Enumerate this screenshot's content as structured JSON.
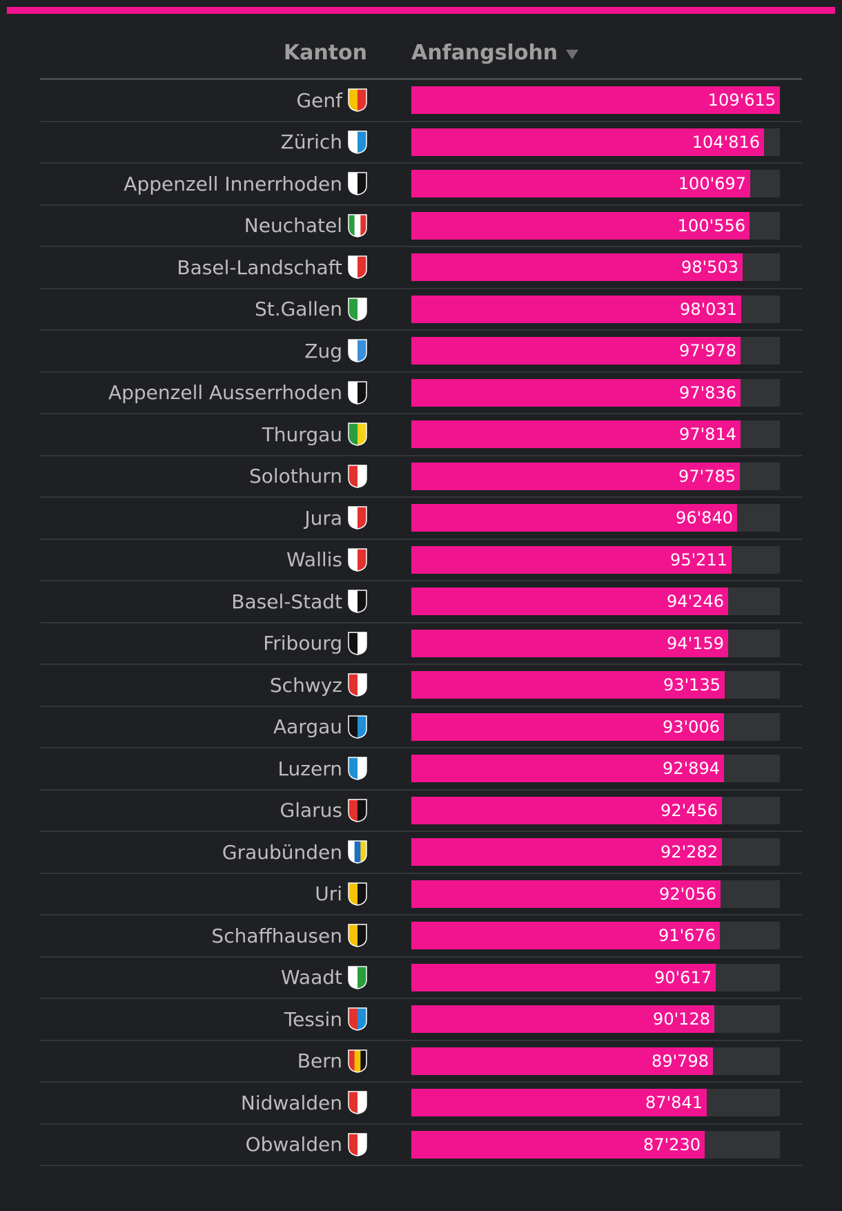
{
  "header": {
    "kanton_label": "Kanton",
    "lohn_label": "Anfangslohn"
  },
  "colors": {
    "accent": "#f2148f",
    "background": "#1f2023",
    "bar_track": "#333437"
  },
  "chart_data": {
    "type": "bar",
    "orientation": "horizontal",
    "xlim": [
      0,
      109615
    ],
    "categories": [
      "Genf",
      "Zürich",
      "Appenzell Innerrhoden",
      "Neuchatel",
      "Basel-Landschaft",
      "St.Gallen",
      "Zug",
      "Appenzell Ausserrhoden",
      "Thurgau",
      "Solothurn",
      "Jura",
      "Wallis",
      "Basel-Stadt",
      "Fribourg",
      "Schwyz",
      "Aargau",
      "Luzern",
      "Glarus",
      "Graubünden",
      "Uri",
      "Schaffhausen",
      "Waadt",
      "Tessin",
      "Bern",
      "Nidwalden",
      "Obwalden"
    ],
    "values": [
      109615,
      104816,
      100697,
      100556,
      98503,
      98031,
      97978,
      97836,
      97814,
      97785,
      96840,
      95211,
      94246,
      94159,
      93135,
      93006,
      92894,
      92456,
      92282,
      92056,
      91676,
      90617,
      90128,
      89798,
      87841,
      87230
    ],
    "labels": [
      "109'615",
      "104'816",
      "100'697",
      "100'556",
      "98'503",
      "98'031",
      "97'978",
      "97'836",
      "97'814",
      "97'785",
      "96'840",
      "95'211",
      "94'246",
      "94'159",
      "93'135",
      "93'006",
      "92'894",
      "92'456",
      "92'282",
      "92'056",
      "91'676",
      "90'617",
      "90'128",
      "89'798",
      "87'841",
      "87'230"
    ],
    "crests": [
      {
        "icon": "geneva-crest-icon",
        "colors": [
          "#f7c200",
          "#e3312d"
        ]
      },
      {
        "icon": "zurich-crest-icon",
        "colors": [
          "#ffffff",
          "#1f8fd6"
        ]
      },
      {
        "icon": "appenzell-innerrhoden-crest-icon",
        "colors": [
          "#ffffff",
          "#111111"
        ]
      },
      {
        "icon": "neuchatel-crest-icon",
        "colors": [
          "#2a9d3c",
          "#ffffff",
          "#e3312d"
        ]
      },
      {
        "icon": "basel-landschaft-crest-icon",
        "colors": [
          "#ffffff",
          "#e3312d"
        ]
      },
      {
        "icon": "st-gallen-crest-icon",
        "colors": [
          "#2a9d3c",
          "#ffffff"
        ]
      },
      {
        "icon": "zug-crest-icon",
        "colors": [
          "#ffffff",
          "#3a8fd9"
        ]
      },
      {
        "icon": "appenzell-ausserrhoden-crest-icon",
        "colors": [
          "#ffffff",
          "#111111"
        ]
      },
      {
        "icon": "thurgau-crest-icon",
        "colors": [
          "#2a9d3c",
          "#f7d21b"
        ]
      },
      {
        "icon": "solothurn-crest-icon",
        "colors": [
          "#e3312d",
          "#ffffff"
        ]
      },
      {
        "icon": "jura-crest-icon",
        "colors": [
          "#ffffff",
          "#e3312d"
        ]
      },
      {
        "icon": "wallis-crest-icon",
        "colors": [
          "#ffffff",
          "#e3312d"
        ]
      },
      {
        "icon": "basel-stadt-crest-icon",
        "colors": [
          "#ffffff",
          "#111111"
        ]
      },
      {
        "icon": "fribourg-crest-icon",
        "colors": [
          "#111111",
          "#ffffff"
        ]
      },
      {
        "icon": "schwyz-crest-icon",
        "colors": [
          "#e3312d",
          "#ffffff"
        ]
      },
      {
        "icon": "aargau-crest-icon",
        "colors": [
          "#111111",
          "#1f8fd6"
        ]
      },
      {
        "icon": "luzern-crest-icon",
        "colors": [
          "#1f8fd6",
          "#ffffff"
        ]
      },
      {
        "icon": "glarus-crest-icon",
        "colors": [
          "#e3312d",
          "#111111"
        ]
      },
      {
        "icon": "graubuenden-crest-icon",
        "colors": [
          "#ffffff",
          "#1f6fc4",
          "#f7d21b"
        ]
      },
      {
        "icon": "uri-crest-icon",
        "colors": [
          "#f7c200",
          "#111111"
        ]
      },
      {
        "icon": "schaffhausen-crest-icon",
        "colors": [
          "#f7c200",
          "#111111"
        ]
      },
      {
        "icon": "waadt-crest-icon",
        "colors": [
          "#ffffff",
          "#2a9d3c"
        ]
      },
      {
        "icon": "tessin-crest-icon",
        "colors": [
          "#e3312d",
          "#1f8fd6"
        ]
      },
      {
        "icon": "bern-crest-icon",
        "colors": [
          "#e3312d",
          "#f7c200",
          "#111111"
        ]
      },
      {
        "icon": "nidwalden-crest-icon",
        "colors": [
          "#e3312d",
          "#ffffff"
        ]
      },
      {
        "icon": "obwalden-crest-icon",
        "colors": [
          "#e3312d",
          "#ffffff"
        ]
      }
    ]
  }
}
